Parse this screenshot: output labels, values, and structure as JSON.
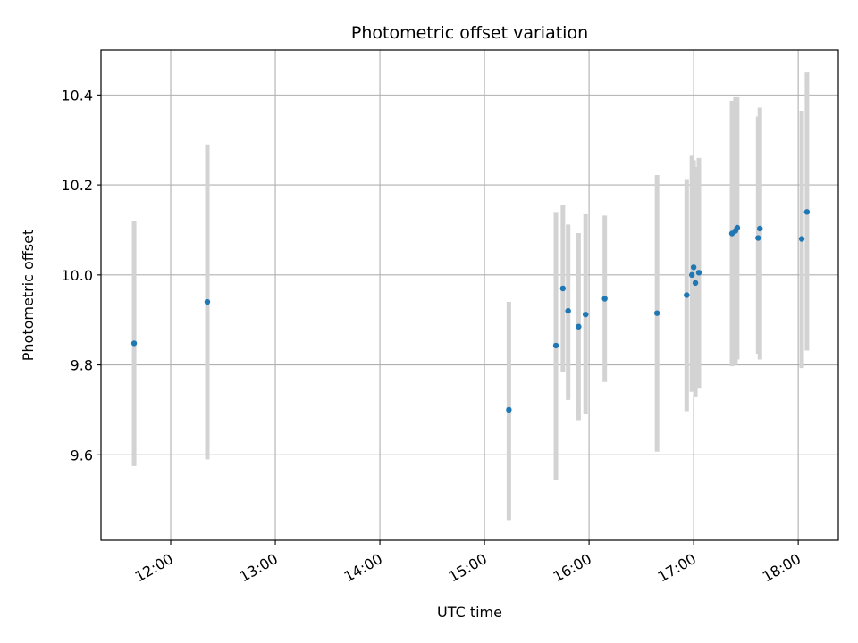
{
  "chart_data": {
    "type": "scatter",
    "title": "Photometric offset variation",
    "xlabel": "UTC time",
    "ylabel": "Photometric offset",
    "x_axis": "time of day (UTC)",
    "xlim": [
      "11:20",
      "18:23"
    ],
    "ylim": [
      9.41,
      10.5
    ],
    "xticks": [
      "12:00",
      "13:00",
      "14:00",
      "15:00",
      "16:00",
      "17:00",
      "18:00"
    ],
    "yticks": [
      9.6,
      9.8,
      10.0,
      10.2,
      10.4
    ],
    "grid": true,
    "marker_color": "#1f77b4",
    "errorbar_color": "#d3d3d3",
    "points": [
      {
        "t": "11:39",
        "y": 9.848,
        "lo": 9.575,
        "hi": 10.12
      },
      {
        "t": "12:21",
        "y": 9.94,
        "lo": 9.59,
        "hi": 10.29
      },
      {
        "t": "15:14",
        "y": 9.7,
        "lo": 9.455,
        "hi": 9.94
      },
      {
        "t": "15:41",
        "y": 9.843,
        "lo": 9.545,
        "hi": 10.14
      },
      {
        "t": "15:45",
        "y": 9.97,
        "lo": 9.785,
        "hi": 10.155
      },
      {
        "t": "15:48",
        "y": 9.92,
        "lo": 9.722,
        "hi": 10.112
      },
      {
        "t": "15:54",
        "y": 9.885,
        "lo": 9.677,
        "hi": 10.093
      },
      {
        "t": "15:58",
        "y": 9.912,
        "lo": 9.69,
        "hi": 10.135
      },
      {
        "t": "16:09",
        "y": 9.947,
        "lo": 9.762,
        "hi": 10.132
      },
      {
        "t": "16:39",
        "y": 9.915,
        "lo": 9.607,
        "hi": 10.222
      },
      {
        "t": "16:56",
        "y": 9.955,
        "lo": 9.697,
        "hi": 10.213
      },
      {
        "t": "16:59",
        "y": 10.0,
        "lo": 9.74,
        "hi": 10.265
      },
      {
        "t": "17:00",
        "y": 10.017,
        "lo": 9.763,
        "hi": 10.255
      },
      {
        "t": "17:01",
        "y": 9.982,
        "lo": 9.73,
        "hi": 10.24
      },
      {
        "t": "17:03",
        "y": 10.005,
        "lo": 9.747,
        "hi": 10.26
      },
      {
        "t": "17:22",
        "y": 10.092,
        "lo": 9.797,
        "hi": 10.387
      },
      {
        "t": "17:24",
        "y": 10.098,
        "lo": 9.8,
        "hi": 10.395
      },
      {
        "t": "17:25",
        "y": 10.105,
        "lo": 9.812,
        "hi": 10.395
      },
      {
        "t": "17:37",
        "y": 10.082,
        "lo": 9.825,
        "hi": 10.352
      },
      {
        "t": "17:38",
        "y": 10.103,
        "lo": 9.812,
        "hi": 10.372
      },
      {
        "t": "18:02",
        "y": 10.08,
        "lo": 9.793,
        "hi": 10.365
      },
      {
        "t": "18:05",
        "y": 10.14,
        "lo": 9.832,
        "hi": 10.45
      }
    ]
  }
}
